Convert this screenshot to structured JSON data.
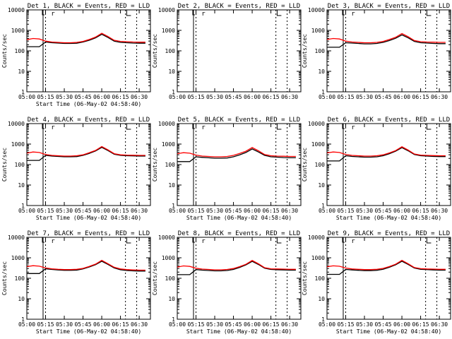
{
  "page": {
    "xlabel": "Start Time (06-May-02 04:58:40)",
    "ylabel": "Counts/sec",
    "colors": {
      "events": "#000000",
      "lld": "#ff0000",
      "axes": "#000000"
    }
  },
  "chart_data": [
    {
      "type": "line",
      "title": "Det 1, BLACK = Events, RED = LLD",
      "marker": "r",
      "xlabel": "Start Time (06-May-02 04:58:40)",
      "ylabel": "Counts/sec",
      "x_ticks": [
        "05:00",
        "05:15",
        "05:30",
        "05:45",
        "06:00",
        "06:15",
        "06:30"
      ],
      "xlim": [
        "05:00",
        "06:39"
      ],
      "ylim": [
        1,
        10000
      ],
      "y_scale": "log",
      "y_ticks": [
        "1",
        "10",
        "100",
        "1000",
        "10000"
      ],
      "x": [
        "05:00",
        "05:05",
        "05:10",
        "05:15",
        "05:20",
        "05:25",
        "05:30",
        "05:35",
        "05:40",
        "05:45",
        "05:50",
        "05:55",
        "06:00",
        "06:05",
        "06:10",
        "06:15",
        "06:20",
        "06:25",
        "06:30",
        "06:35"
      ],
      "series": [
        {
          "name": "Events",
          "color": "#000000",
          "values": [
            160,
            160,
            160,
            270,
            250,
            240,
            230,
            230,
            235,
            270,
            330,
            430,
            640,
            450,
            300,
            260,
            250,
            240,
            235,
            235
          ]
        },
        {
          "name": "LLD",
          "color": "#ff0000",
          "values": [
            350,
            400,
            380,
            300,
            270,
            260,
            250,
            250,
            260,
            290,
            360,
            470,
            720,
            500,
            330,
            290,
            280,
            270,
            265,
            265
          ]
        }
      ]
    },
    {
      "type": "line",
      "title": "Det 2, BLACK = Events, RED = LLD",
      "marker": "r",
      "xlabel": "",
      "ylabel": "Counts/sec",
      "x_ticks": [
        "05:00",
        "05:15",
        "05:30",
        "05:45",
        "06:00",
        "06:15",
        "06:30"
      ],
      "xlim": [
        "05:00",
        "06:39"
      ],
      "ylim": [
        1,
        10000
      ],
      "y_scale": "log",
      "y_ticks": [
        "1",
        "10",
        "100",
        "1000",
        "10000"
      ],
      "x": [],
      "series": []
    },
    {
      "type": "line",
      "title": "Det 3, BLACK = Events, RED = LLD",
      "marker": "r",
      "xlabel": "",
      "ylabel": "Counts/sec",
      "x_ticks": [
        "05:00",
        "05:15",
        "05:30",
        "05:45",
        "06:00",
        "06:15",
        "06:30"
      ],
      "xlim": [
        "05:00",
        "06:39"
      ],
      "ylim": [
        1,
        10000
      ],
      "y_scale": "log",
      "y_ticks": [
        "1",
        "10",
        "100",
        "1000",
        "10000"
      ],
      "x": [
        "05:00",
        "05:05",
        "05:10",
        "05:15",
        "05:20",
        "05:25",
        "05:30",
        "05:35",
        "05:40",
        "05:45",
        "05:50",
        "05:55",
        "06:00",
        "06:05",
        "06:10",
        "06:15",
        "06:20",
        "06:25",
        "06:30",
        "06:35"
      ],
      "series": [
        {
          "name": "Events",
          "color": "#000000",
          "values": [
            150,
            150,
            150,
            250,
            240,
            230,
            220,
            220,
            230,
            260,
            320,
            410,
            600,
            430,
            290,
            250,
            240,
            230,
            225,
            225
          ]
        },
        {
          "name": "LLD",
          "color": "#ff0000",
          "values": [
            360,
            400,
            380,
            300,
            270,
            260,
            250,
            250,
            260,
            290,
            360,
            460,
            700,
            490,
            320,
            280,
            270,
            265,
            260,
            260
          ]
        }
      ]
    },
    {
      "type": "line",
      "title": "Det 4, BLACK = Events, RED = LLD",
      "marker": "r",
      "xlabel": "Start Time (06-May-02 04:58:40)",
      "ylabel": "Counts/sec",
      "x_ticks": [
        "05:00",
        "05:15",
        "05:30",
        "05:45",
        "06:00",
        "06:15",
        "06:30"
      ],
      "xlim": [
        "05:00",
        "06:39"
      ],
      "ylim": [
        1,
        10000
      ],
      "y_scale": "log",
      "y_ticks": [
        "1",
        "10",
        "100",
        "1000",
        "10000"
      ],
      "x": [
        "05:00",
        "05:05",
        "05:10",
        "05:15",
        "05:20",
        "05:25",
        "05:30",
        "05:35",
        "05:40",
        "05:45",
        "05:50",
        "05:55",
        "06:00",
        "06:05",
        "06:10",
        "06:15",
        "06:20",
        "06:25",
        "06:30",
        "06:35"
      ],
      "series": [
        {
          "name": "Events",
          "color": "#000000",
          "values": [
            160,
            160,
            160,
            280,
            260,
            250,
            240,
            240,
            245,
            280,
            350,
            460,
            690,
            480,
            320,
            280,
            270,
            265,
            260,
            260
          ]
        },
        {
          "name": "LLD",
          "color": "#ff0000",
          "values": [
            360,
            410,
            390,
            310,
            280,
            270,
            260,
            260,
            270,
            300,
            380,
            490,
            760,
            520,
            340,
            300,
            290,
            285,
            280,
            280
          ]
        }
      ]
    },
    {
      "type": "line",
      "title": "Det 5, BLACK = Events, RED = LLD",
      "marker": "r",
      "xlabel": "Start Time (06-May-02 04:58:40)",
      "ylabel": "Counts/sec",
      "x_ticks": [
        "05:00",
        "05:15",
        "05:30",
        "05:45",
        "06:00",
        "06:15",
        "06:30"
      ],
      "xlim": [
        "05:00",
        "06:39"
      ],
      "ylim": [
        1,
        10000
      ],
      "y_scale": "log",
      "y_ticks": [
        "1",
        "10",
        "100",
        "1000",
        "10000"
      ],
      "x": [
        "05:00",
        "05:05",
        "05:10",
        "05:15",
        "05:20",
        "05:25",
        "05:30",
        "05:35",
        "05:40",
        "05:45",
        "05:50",
        "05:55",
        "06:00",
        "06:05",
        "06:10",
        "06:15",
        "06:20",
        "06:25",
        "06:30",
        "06:35"
      ],
      "series": [
        {
          "name": "Events",
          "color": "#000000",
          "values": [
            140,
            140,
            140,
            240,
            225,
            215,
            205,
            205,
            210,
            240,
            300,
            390,
            580,
            410,
            280,
            240,
            230,
            220,
            215,
            215
          ]
        },
        {
          "name": "LLD",
          "color": "#ff0000",
          "values": [
            340,
            380,
            360,
            290,
            260,
            250,
            240,
            240,
            250,
            280,
            350,
            450,
            680,
            470,
            310,
            270,
            260,
            255,
            250,
            250
          ]
        }
      ]
    },
    {
      "type": "line",
      "title": "Det 6, BLACK = Events, RED = LLD",
      "marker": "r",
      "xlabel": "Start Time (06-May-02 04:58:40)",
      "ylabel": "Counts/sec",
      "x_ticks": [
        "05:00",
        "05:15",
        "05:30",
        "05:45",
        "06:00",
        "06:15",
        "06:30"
      ],
      "xlim": [
        "05:00",
        "06:39"
      ],
      "ylim": [
        1,
        10000
      ],
      "y_scale": "log",
      "y_ticks": [
        "1",
        "10",
        "100",
        "1000",
        "10000"
      ],
      "x": [
        "05:00",
        "05:05",
        "05:10",
        "05:15",
        "05:20",
        "05:25",
        "05:30",
        "05:35",
        "05:40",
        "05:45",
        "05:50",
        "05:55",
        "06:00",
        "06:05",
        "06:10",
        "06:15",
        "06:20",
        "06:25",
        "06:30",
        "06:35"
      ],
      "series": [
        {
          "name": "Events",
          "color": "#000000",
          "values": [
            150,
            150,
            150,
            270,
            250,
            240,
            230,
            230,
            240,
            270,
            340,
            450,
            670,
            470,
            310,
            270,
            260,
            250,
            245,
            245
          ]
        },
        {
          "name": "LLD",
          "color": "#ff0000",
          "values": [
            370,
            410,
            390,
            310,
            280,
            270,
            260,
            260,
            270,
            300,
            370,
            480,
            740,
            510,
            330,
            290,
            280,
            275,
            270,
            270
          ]
        }
      ]
    },
    {
      "type": "line",
      "title": "Det 7, BLACK = Events, RED = LLD",
      "marker": "r",
      "xlabel": "Start Time (06-May-02 04:58:40)",
      "ylabel": "Counts/sec",
      "x_ticks": [
        "05:00",
        "05:15",
        "05:30",
        "05:45",
        "06:00",
        "06:15",
        "06:30"
      ],
      "xlim": [
        "05:00",
        "06:39"
      ],
      "ylim": [
        1,
        10000
      ],
      "y_scale": "log",
      "y_ticks": [
        "1",
        "10",
        "100",
        "1000",
        "10000"
      ],
      "x": [
        "05:00",
        "05:05",
        "05:10",
        "05:15",
        "05:20",
        "05:25",
        "05:30",
        "05:35",
        "05:40",
        "05:45",
        "05:50",
        "05:55",
        "06:00",
        "06:05",
        "06:10",
        "06:15",
        "06:20",
        "06:25",
        "06:30",
        "06:35"
      ],
      "series": [
        {
          "name": "Events",
          "color": "#000000",
          "values": [
            170,
            170,
            170,
            290,
            270,
            255,
            245,
            245,
            250,
            285,
            355,
            460,
            680,
            475,
            320,
            260,
            240,
            230,
            225,
            225
          ]
        },
        {
          "name": "LLD",
          "color": "#ff0000",
          "values": [
            370,
            410,
            390,
            320,
            290,
            275,
            265,
            265,
            275,
            305,
            380,
            490,
            750,
            515,
            345,
            285,
            265,
            255,
            250,
            250
          ]
        }
      ]
    },
    {
      "type": "line",
      "title": "Det 8, BLACK = Events, RED = LLD",
      "marker": "r",
      "xlabel": "Start Time (06-May-02 04:58:40)",
      "ylabel": "Counts/sec",
      "x_ticks": [
        "05:00",
        "05:15",
        "05:30",
        "05:45",
        "06:00",
        "06:15",
        "06:30"
      ],
      "xlim": [
        "05:00",
        "06:39"
      ],
      "ylim": [
        1,
        10000
      ],
      "y_scale": "log",
      "y_ticks": [
        "1",
        "10",
        "100",
        "1000",
        "10000"
      ],
      "x": [
        "05:00",
        "05:05",
        "05:10",
        "05:15",
        "05:20",
        "05:25",
        "05:30",
        "05:35",
        "05:40",
        "05:45",
        "05:50",
        "05:55",
        "06:00",
        "06:05",
        "06:10",
        "06:15",
        "06:20",
        "06:25",
        "06:30",
        "06:35"
      ],
      "series": [
        {
          "name": "Events",
          "color": "#000000",
          "values": [
            150,
            150,
            150,
            265,
            250,
            240,
            230,
            230,
            240,
            270,
            340,
            450,
            670,
            470,
            310,
            270,
            260,
            255,
            250,
            250
          ]
        },
        {
          "name": "LLD",
          "color": "#ff0000",
          "values": [
            350,
            400,
            380,
            310,
            280,
            270,
            260,
            260,
            270,
            300,
            370,
            480,
            740,
            510,
            330,
            290,
            285,
            280,
            275,
            275
          ]
        }
      ]
    },
    {
      "type": "line",
      "title": "Det 9, BLACK = Events, RED = LLD",
      "marker": "r",
      "xlabel": "Start Time (06-May-02 04:58:40)",
      "ylabel": "Counts/sec",
      "x_ticks": [
        "05:00",
        "05:15",
        "05:30",
        "05:45",
        "06:00",
        "06:15",
        "06:30"
      ],
      "xlim": [
        "05:00",
        "06:39"
      ],
      "ylim": [
        1,
        10000
      ],
      "y_scale": "log",
      "y_ticks": [
        "1",
        "10",
        "100",
        "1000",
        "10000"
      ],
      "x": [
        "05:00",
        "05:05",
        "05:10",
        "05:15",
        "05:20",
        "05:25",
        "05:30",
        "05:35",
        "05:40",
        "05:45",
        "05:50",
        "05:55",
        "06:00",
        "06:05",
        "06:10",
        "06:15",
        "06:20",
        "06:25",
        "06:30",
        "06:35"
      ],
      "series": [
        {
          "name": "Events",
          "color": "#000000",
          "values": [
            155,
            155,
            155,
            270,
            255,
            245,
            235,
            235,
            245,
            275,
            345,
            455,
            680,
            475,
            315,
            275,
            265,
            255,
            250,
            250
          ]
        },
        {
          "name": "LLD",
          "color": "#ff0000",
          "values": [
            365,
            405,
            385,
            315,
            285,
            275,
            265,
            265,
            275,
            305,
            375,
            485,
            750,
            515,
            335,
            295,
            285,
            280,
            275,
            275
          ]
        }
      ]
    }
  ]
}
